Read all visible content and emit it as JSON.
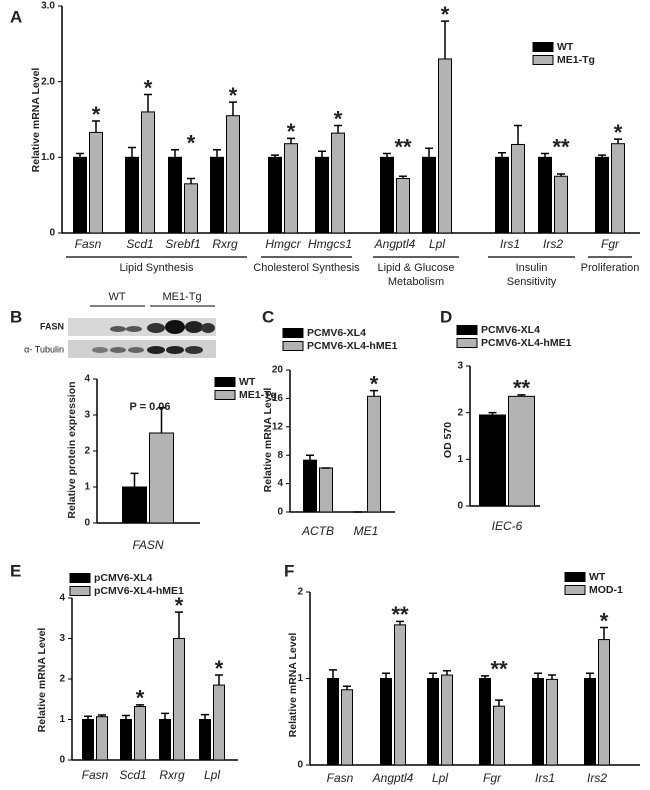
{
  "chart_data": [
    {
      "type": "bar",
      "panel": "A",
      "y_label": "Relative mRNA Level",
      "categories": [
        "Fasn",
        "Scd1",
        "Srebf1",
        "Rxrg",
        "Hmgcr",
        "Hmgcs1",
        "Angptl4",
        "Lpl",
        "Irs1",
        "Irs2",
        "Fgr"
      ],
      "series": [
        {
          "name": "WT",
          "color": "#000000",
          "values": [
            1.0,
            1.0,
            1.0,
            1.0,
            1.0,
            1.0,
            1.0,
            1.0,
            1.0,
            1.0,
            1.0
          ],
          "errors": [
            0.05,
            0.13,
            0.1,
            0.1,
            0.03,
            0.08,
            0.05,
            0.12,
            0.06,
            0.05,
            0.03
          ]
        },
        {
          "name": "ME1-Tg",
          "color": "#b3b3b3",
          "values": [
            1.33,
            1.6,
            0.65,
            1.55,
            1.18,
            1.32,
            0.72,
            2.3,
            1.17,
            0.75,
            1.18
          ],
          "errors": [
            0.15,
            0.23,
            0.07,
            0.18,
            0.07,
            0.1,
            0.03,
            0.5,
            0.25,
            0.03,
            0.06
          ]
        }
      ],
      "annotations": [
        "*",
        "*",
        "*",
        "*",
        "*",
        "*",
        "**",
        "*",
        null,
        "**",
        "*"
      ],
      "groups": [
        {
          "label": [
            "Lipid Synthesis"
          ],
          "members": [
            "Fasn",
            "Rxrg"
          ]
        },
        {
          "label": [
            "Cholesterol Synthesis"
          ],
          "members": [
            "Hmgcr",
            "Hmgcs1"
          ]
        },
        {
          "label": [
            "Lipid & Glucose",
            "Metabolism"
          ],
          "members": [
            "Angptl4",
            "Lpl"
          ]
        },
        {
          "label": [
            "Insulin",
            "Sensitivity"
          ],
          "members": [
            "Irs1",
            "Irs2"
          ]
        },
        {
          "label": [
            "Proliferation"
          ],
          "members": [
            "Fgr",
            "Fgr"
          ]
        }
      ],
      "ylim": [
        0,
        3
      ],
      "yticks": [
        0,
        {
          "value": 1,
          "label": "1.0"
        },
        {
          "value": 2,
          "label": "2.0"
        },
        {
          "value": 3,
          "label": "3.0"
        }
      ]
    },
    {
      "type": "bar",
      "panel": "B",
      "y_label": "Relative protein expression",
      "blot": {
        "lanes": [
          "WT",
          "ME1-Tg"
        ],
        "rows": [
          "FASN",
          "α- Tubulin"
        ]
      },
      "categories": [
        "FASN"
      ],
      "series": [
        {
          "name": "WT",
          "color": "#000000",
          "values": [
            1.0
          ],
          "errors": [
            0.38
          ]
        },
        {
          "name": "ME1-Tg",
          "color": "#b3b3b3",
          "values": [
            2.5
          ],
          "errors": [
            0.7
          ]
        }
      ],
      "note": "P = 0.06",
      "ylim": [
        0,
        4
      ],
      "yticks": [
        0,
        1,
        2,
        3,
        4
      ]
    },
    {
      "type": "bar",
      "panel": "C",
      "y_label": "Relative mRNA Level",
      "categories": [
        "ACTB",
        "ME1"
      ],
      "series": [
        {
          "name": "PCMV6-XL4",
          "color": "#000000",
          "values": [
            7.3,
            0
          ],
          "errors": [
            0.7,
            0
          ]
        },
        {
          "name": "PCMV6-XL4-hME1",
          "color": "#b3b3b3",
          "values": [
            6.2,
            16.3
          ],
          "errors": [
            0,
            0.8
          ]
        }
      ],
      "annotations": [
        null,
        "*"
      ],
      "ylim": [
        0,
        20
      ],
      "yticks": [
        0,
        4,
        8,
        12,
        16,
        20
      ]
    },
    {
      "type": "bar",
      "panel": "D",
      "y_label": "OD 570",
      "categories": [
        "IEC-6"
      ],
      "series": [
        {
          "name": "PCMV6-XL4",
          "color": "#000000",
          "values": [
            1.95
          ],
          "errors": [
            0.05
          ]
        },
        {
          "name": "PCMV6-XL4-hME1",
          "color": "#b3b3b3",
          "values": [
            2.35
          ],
          "errors": [
            0.03
          ]
        }
      ],
      "annotations": [
        "**"
      ],
      "ylim": [
        0,
        3
      ],
      "yticks": [
        0,
        1,
        2,
        3
      ]
    },
    {
      "type": "bar",
      "panel": "E",
      "y_label": "Relative mRNA Level",
      "categories": [
        "Fasn",
        "Scd1",
        "Rxrg",
        "Lpl"
      ],
      "series": [
        {
          "name": "pCMV6-XL4",
          "color": "#000000",
          "values": [
            1.0,
            1.0,
            1.0,
            1.0
          ],
          "errors": [
            0.08,
            0.1,
            0.15,
            0.12
          ]
        },
        {
          "name": "pCMV6-XL4-hME1",
          "color": "#b3b3b3",
          "values": [
            1.07,
            1.32,
            3.0,
            1.85
          ],
          "errors": [
            0.04,
            0.04,
            0.65,
            0.25
          ]
        }
      ],
      "annotations": [
        null,
        "*",
        "*",
        "*"
      ],
      "ylim": [
        0,
        4
      ],
      "yticks": [
        0,
        1,
        2,
        3,
        4
      ]
    },
    {
      "type": "bar",
      "panel": "F",
      "y_label": "Relative mRNA Level",
      "categories": [
        "Fasn",
        "Angptl4",
        "Lpl",
        "Fgr",
        "Irs1",
        "Irs2"
      ],
      "series": [
        {
          "name": "WT",
          "color": "#000000",
          "values": [
            1.0,
            1.0,
            1.0,
            1.0,
            1.0,
            1.0
          ],
          "errors": [
            0.1,
            0.06,
            0.06,
            0.03,
            0.06,
            0.06
          ]
        },
        {
          "name": "MOD-1",
          "color": "#b3b3b3",
          "values": [
            0.87,
            1.62,
            1.04,
            0.68,
            0.99,
            1.45
          ],
          "errors": [
            0.04,
            0.04,
            0.05,
            0.07,
            0.05,
            0.14
          ]
        }
      ],
      "annotations": [
        null,
        "**",
        null,
        "**",
        null,
        "*"
      ],
      "ylim": [
        0,
        2
      ],
      "yticks": [
        0,
        1,
        2
      ]
    }
  ]
}
